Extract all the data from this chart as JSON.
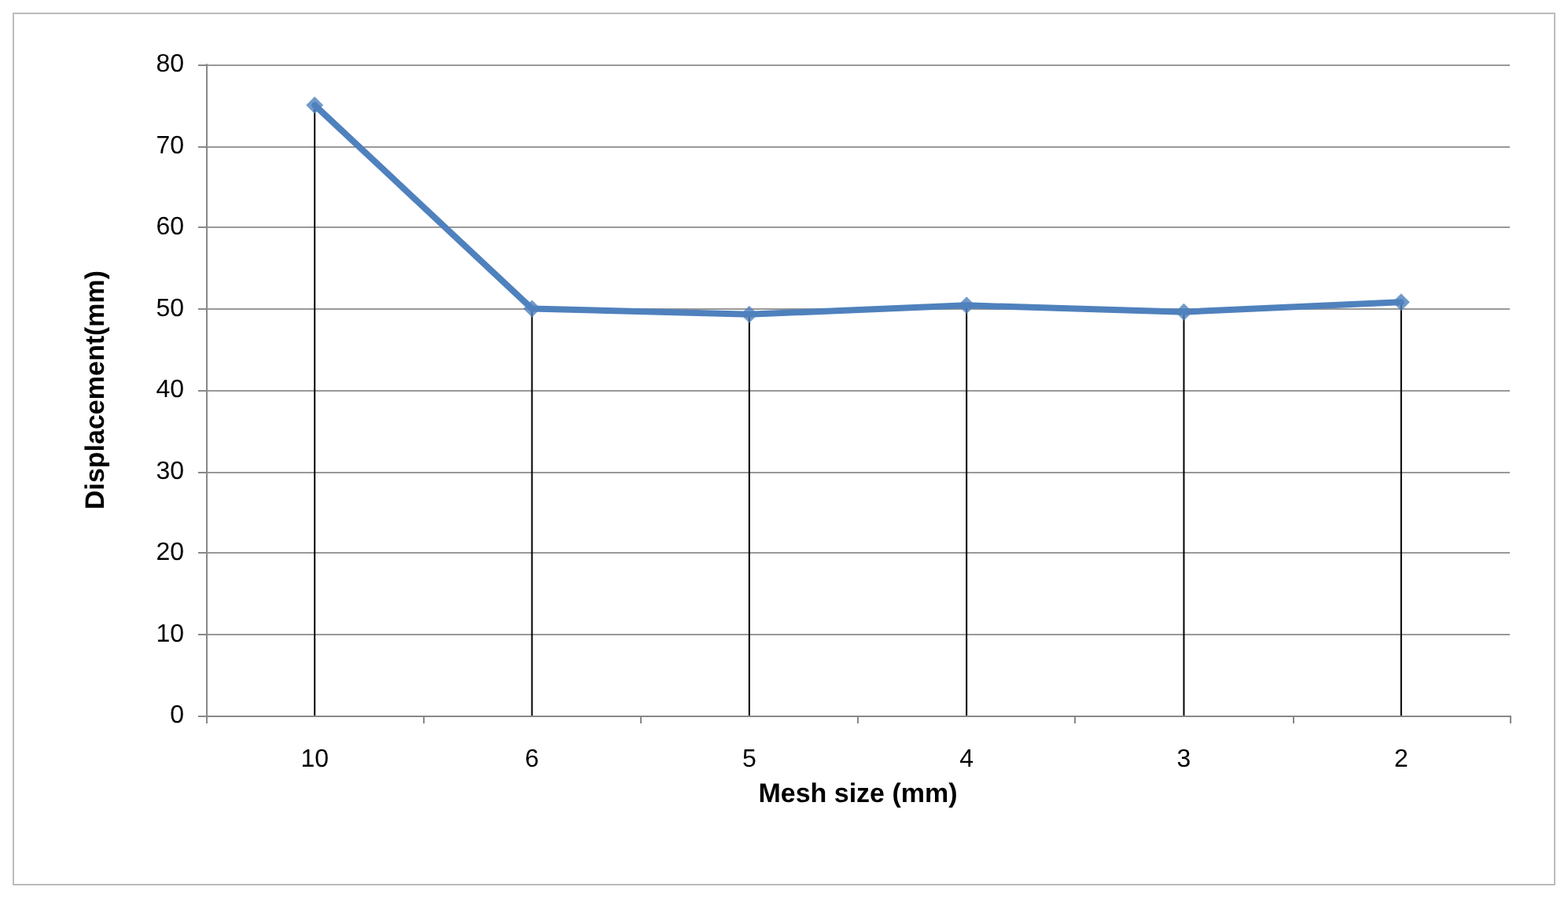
{
  "chart_data": {
    "type": "line",
    "xlabel": "Mesh size (mm)",
    "ylabel": "Displacement(mm)",
    "categories": [
      "10",
      "6",
      "5",
      "4",
      "3",
      "2"
    ],
    "series": [
      {
        "color": "#4f81bd",
        "marker": "none",
        "values": [
          75,
          50,
          49.3,
          50.4,
          49.6,
          50.8
        ]
      },
      {
        "type": "lollipop",
        "color": "#4f81bd",
        "marker": "diamond",
        "values": [
          75,
          50,
          49.3,
          50.4,
          49.6,
          50.8
        ]
      }
    ],
    "ylim": [
      0,
      80
    ],
    "yticks": [
      0,
      10,
      20,
      30,
      40,
      50,
      60,
      70,
      80
    ],
    "grid": "y",
    "line_style": "solid"
  }
}
